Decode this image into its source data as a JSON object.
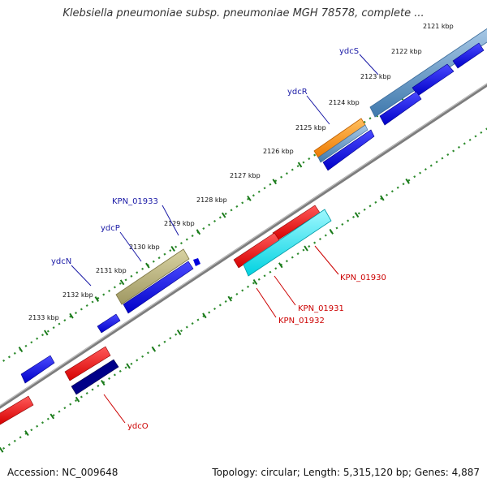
{
  "title": "Klebsiella pneumoniae subsp. pneumoniae MGH 78578, complete ...",
  "footer": {
    "accession": "Accession: NC_009648",
    "summary": "Topology: circular; Length: 5,315,120 bp; Genes: 4,887"
  },
  "scale": {
    "unit": "kbp",
    "ticks": [
      "2121 kbp",
      "2122 kbp",
      "2123 kbp",
      "2124 kbp",
      "2125 kbp",
      "2126 kbp",
      "2127 kbp",
      "2128 kbp",
      "2129 kbp",
      "2130 kbp",
      "2131 kbp",
      "2132 kbp",
      "2133 kbp"
    ]
  },
  "genes_forward": [
    {
      "label": "ydcS",
      "color": "#1a1aa6"
    },
    {
      "label": "ydcR",
      "color": "#1a1aa6"
    },
    {
      "label": "KPN_01933",
      "color": "#1a1aa6"
    },
    {
      "label": "ydcP",
      "color": "#1a1aa6"
    },
    {
      "label": "ydcN",
      "color": "#1a1aa6"
    }
  ],
  "genes_reverse": [
    {
      "label": "KPN_01930",
      "color": "#cc0000"
    },
    {
      "label": "KPN_01931",
      "color": "#cc0000"
    },
    {
      "label": "KPN_01932",
      "color": "#cc0000"
    },
    {
      "label": "ydcO",
      "color": "#cc0000"
    }
  ],
  "colors": {
    "forward_cds": "#0000dd",
    "reverse_cds": "#ee0000",
    "backbone": "#888888",
    "dotted_ring": "#2e8b2e",
    "feature_steelblue": "#4f87b8",
    "feature_orange": "#ff8c00",
    "feature_khaki": "#b8b07a",
    "feature_cyan": "#00e5ee",
    "feature_navy": "#000088"
  }
}
